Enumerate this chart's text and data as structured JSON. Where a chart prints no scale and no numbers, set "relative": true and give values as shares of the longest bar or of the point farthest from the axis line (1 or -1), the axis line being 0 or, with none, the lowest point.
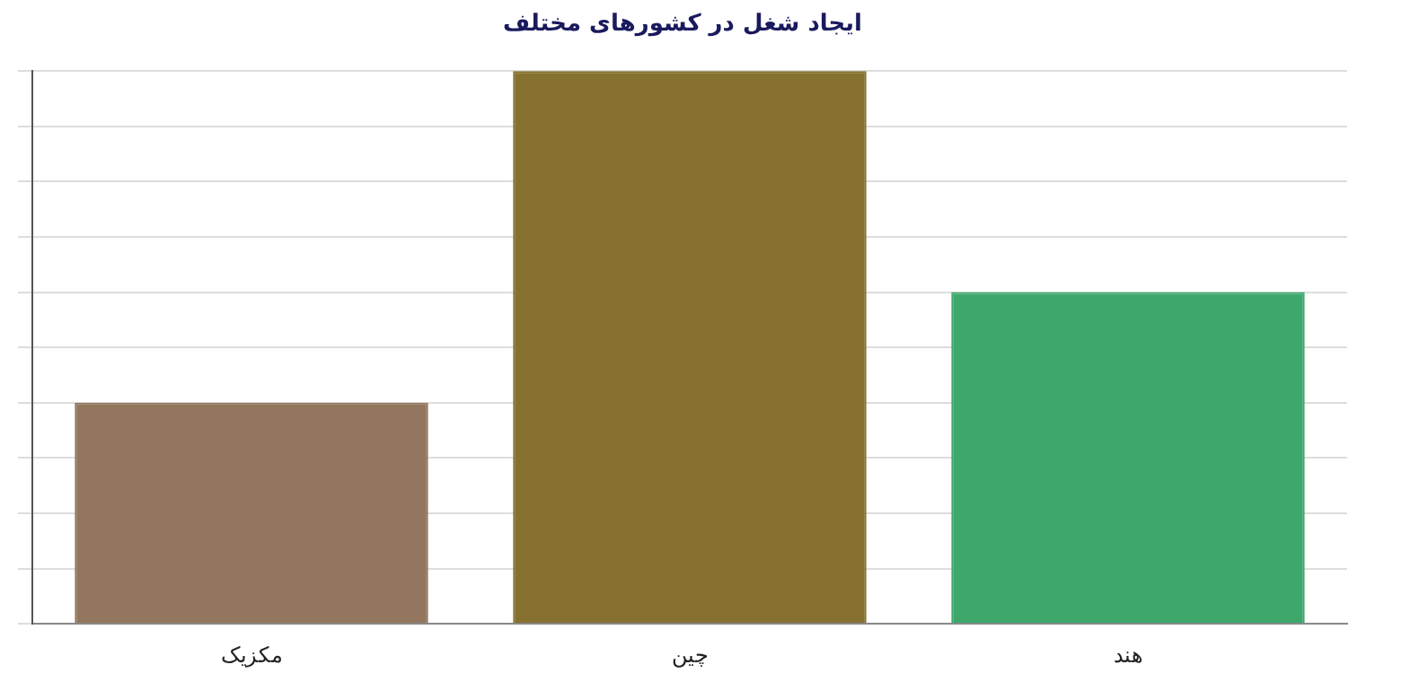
{
  "chart_data": {
    "type": "bar",
    "title": "ایجاد شغل در کشورهای مختلف",
    "categories": [
      "مکزیک",
      "چین",
      "هند"
    ],
    "values": [
      0.4,
      1,
      0.6
    ],
    "colors": [
      "#92765e",
      "#85702f",
      "#3ea86c"
    ],
    "relative": true,
    "grid": "y",
    "legend": false
  }
}
